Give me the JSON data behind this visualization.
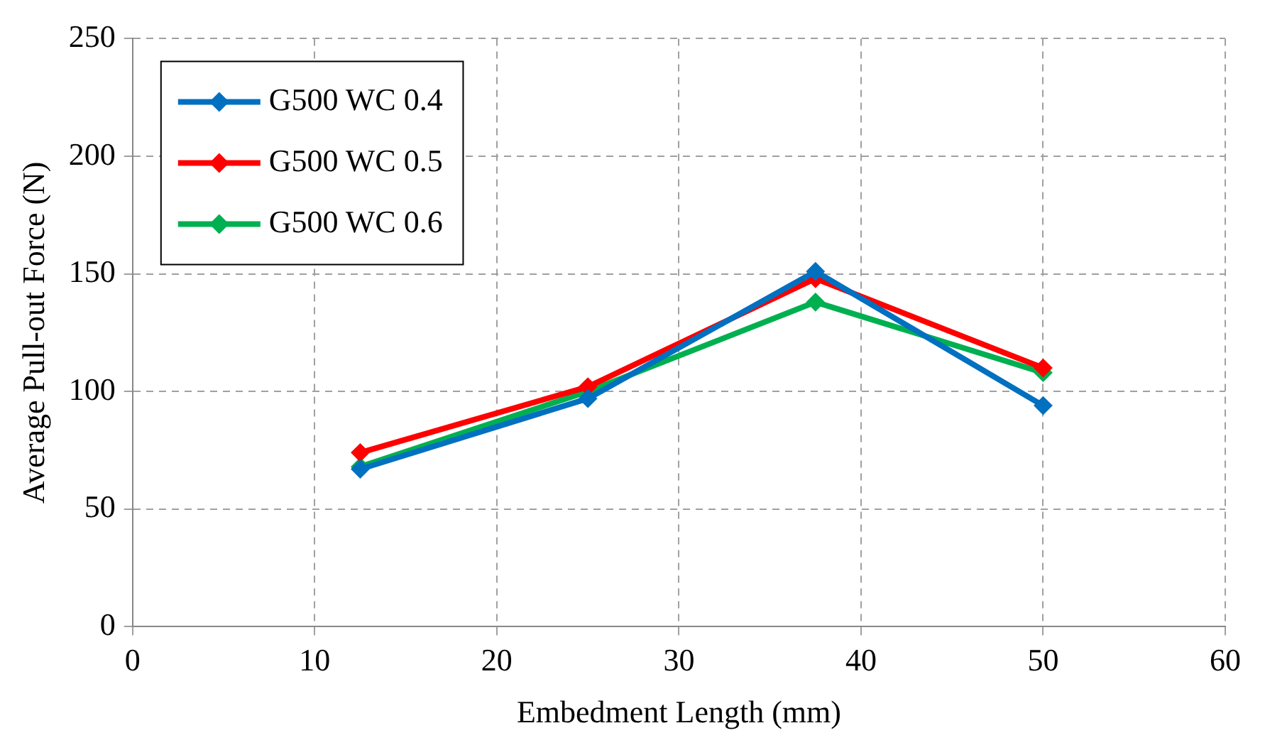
{
  "chart_data": {
    "type": "line",
    "xlabel": "Embedment Length (mm)",
    "ylabel": "Average Pull-out Force (N)",
    "x": [
      12.5,
      25,
      37.5,
      50
    ],
    "series": [
      {
        "name": "G500 WC 0.4",
        "color": "#0070c0",
        "values": [
          67,
          97,
          151,
          94
        ]
      },
      {
        "name": "G500 WC 0.5",
        "color": "#ff0000",
        "values": [
          74,
          102,
          148,
          110
        ]
      },
      {
        "name": "G500 WC 0.6",
        "color": "#00b050",
        "values": [
          68,
          100,
          138,
          108
        ]
      }
    ],
    "xlim": [
      0,
      60
    ],
    "xticks": [
      0,
      10,
      20,
      30,
      40,
      50,
      60
    ],
    "ylim": [
      0,
      250
    ],
    "yticks": [
      0,
      50,
      100,
      150,
      200,
      250
    ],
    "grid": true,
    "legend": "top left",
    "marker": "diamond",
    "line_style": "solid"
  }
}
